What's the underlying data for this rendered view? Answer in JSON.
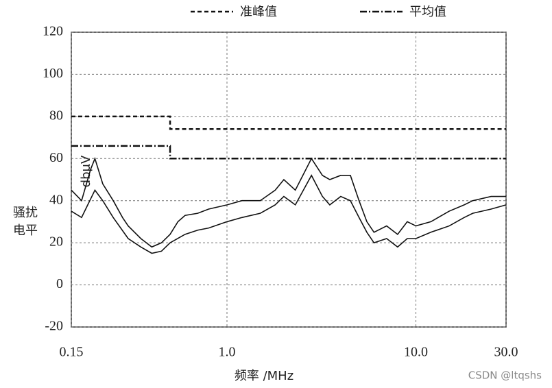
{
  "chart_data": {
    "type": "line",
    "ylabel": "dbμV",
    "ylabel_lines": [
      "骚扰",
      "电平"
    ],
    "xlabel": "频率 /MHz",
    "watermark": "CSDN @ltqshs",
    "xscale": "log",
    "xlim": [
      0.15,
      30
    ],
    "xticks": [
      0.15,
      {
        "value": 1,
        "label": "1.0"
      },
      {
        "value": 10,
        "label": "10.0"
      },
      {
        "value": 30,
        "label": "30.0"
      }
    ],
    "ylim": [
      -20,
      120
    ],
    "yticks": [
      -20,
      0,
      20,
      40,
      60,
      80,
      100,
      120
    ],
    "grid": true,
    "series": [
      {
        "name": "准峰值",
        "color": "#111111",
        "dash": "dashed",
        "x": [
          0.15,
          0.5,
          0.5,
          30
        ],
        "values": [
          80,
          80,
          74,
          74
        ]
      },
      {
        "name": "平均值",
        "color": "#111111",
        "dash": "dashdot",
        "x": [
          0.15,
          0.5,
          0.5,
          30
        ],
        "values": [
          66,
          66,
          60,
          60
        ]
      },
      {
        "color": "#111111",
        "dash": "solid",
        "x": [
          0.15,
          0.17,
          0.19,
          0.2,
          0.22,
          0.25,
          0.28,
          0.3,
          0.35,
          0.4,
          0.45,
          0.5,
          0.55,
          0.6,
          0.7,
          0.8,
          1.0,
          1.2,
          1.5,
          1.8,
          2.0,
          2.3,
          2.8,
          3.2,
          3.5,
          4.0,
          4.5,
          5.0,
          5.5,
          6.0,
          7,
          8,
          9,
          10,
          12,
          15,
          18,
          20,
          25,
          30
        ],
        "values": [
          45,
          40,
          55,
          60,
          48,
          40,
          32,
          28,
          22,
          18,
          20,
          24,
          30,
          33,
          34,
          36,
          38,
          40,
          40,
          45,
          50,
          45,
          60,
          52,
          50,
          52,
          52,
          40,
          30,
          25,
          28,
          24,
          30,
          28,
          30,
          35,
          38,
          40,
          42,
          42
        ]
      },
      {
        "color": "#111111",
        "dash": "solid",
        "x": [
          0.15,
          0.17,
          0.2,
          0.22,
          0.25,
          0.3,
          0.35,
          0.4,
          0.45,
          0.5,
          0.6,
          0.7,
          0.8,
          1.0,
          1.2,
          1.5,
          1.8,
          2.0,
          2.3,
          2.8,
          3.2,
          3.5,
          4.0,
          4.5,
          5.0,
          5.5,
          6,
          7,
          8,
          9,
          10,
          12,
          15,
          18,
          20,
          25,
          30
        ],
        "values": [
          35,
          32,
          45,
          40,
          32,
          22,
          18,
          15,
          16,
          20,
          24,
          26,
          27,
          30,
          32,
          34,
          38,
          42,
          38,
          52,
          42,
          38,
          42,
          40,
          32,
          25,
          20,
          22,
          18,
          22,
          22,
          25,
          28,
          32,
          34,
          36,
          38
        ]
      }
    ]
  }
}
